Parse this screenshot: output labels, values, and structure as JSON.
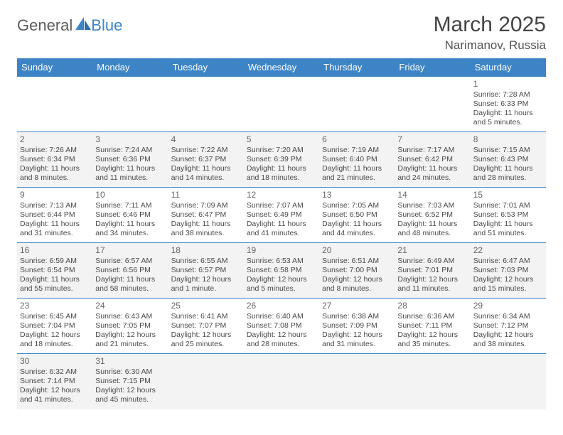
{
  "logo": {
    "text1": "General",
    "text2": "Blue",
    "accent": "#3d84c6",
    "text_color": "#5a5a5a"
  },
  "title": "March 2025",
  "location": "Narimanov, Russia",
  "columns": [
    "Sunday",
    "Monday",
    "Tuesday",
    "Wednesday",
    "Thursday",
    "Friday",
    "Saturday"
  ],
  "colors": {
    "header_bg": "#3d84c6",
    "header_fg": "#ffffff",
    "row_alt_bg": "#f3f3f3",
    "border": "#3d84c6",
    "text": "#4a4a4a"
  },
  "weeks": [
    [
      null,
      null,
      null,
      null,
      null,
      null,
      {
        "n": "1",
        "sr": "7:28 AM",
        "ss": "6:33 PM",
        "dl": "11 hours and 5 minutes."
      }
    ],
    [
      {
        "n": "2",
        "sr": "7:26 AM",
        "ss": "6:34 PM",
        "dl": "11 hours and 8 minutes."
      },
      {
        "n": "3",
        "sr": "7:24 AM",
        "ss": "6:36 PM",
        "dl": "11 hours and 11 minutes."
      },
      {
        "n": "4",
        "sr": "7:22 AM",
        "ss": "6:37 PM",
        "dl": "11 hours and 14 minutes."
      },
      {
        "n": "5",
        "sr": "7:20 AM",
        "ss": "6:39 PM",
        "dl": "11 hours and 18 minutes."
      },
      {
        "n": "6",
        "sr": "7:19 AM",
        "ss": "6:40 PM",
        "dl": "11 hours and 21 minutes."
      },
      {
        "n": "7",
        "sr": "7:17 AM",
        "ss": "6:42 PM",
        "dl": "11 hours and 24 minutes."
      },
      {
        "n": "8",
        "sr": "7:15 AM",
        "ss": "6:43 PM",
        "dl": "11 hours and 28 minutes."
      }
    ],
    [
      {
        "n": "9",
        "sr": "7:13 AM",
        "ss": "6:44 PM",
        "dl": "11 hours and 31 minutes."
      },
      {
        "n": "10",
        "sr": "7:11 AM",
        "ss": "6:46 PM",
        "dl": "11 hours and 34 minutes."
      },
      {
        "n": "11",
        "sr": "7:09 AM",
        "ss": "6:47 PM",
        "dl": "11 hours and 38 minutes."
      },
      {
        "n": "12",
        "sr": "7:07 AM",
        "ss": "6:49 PM",
        "dl": "11 hours and 41 minutes."
      },
      {
        "n": "13",
        "sr": "7:05 AM",
        "ss": "6:50 PM",
        "dl": "11 hours and 44 minutes."
      },
      {
        "n": "14",
        "sr": "7:03 AM",
        "ss": "6:52 PM",
        "dl": "11 hours and 48 minutes."
      },
      {
        "n": "15",
        "sr": "7:01 AM",
        "ss": "6:53 PM",
        "dl": "11 hours and 51 minutes."
      }
    ],
    [
      {
        "n": "16",
        "sr": "6:59 AM",
        "ss": "6:54 PM",
        "dl": "11 hours and 55 minutes."
      },
      {
        "n": "17",
        "sr": "6:57 AM",
        "ss": "6:56 PM",
        "dl": "11 hours and 58 minutes."
      },
      {
        "n": "18",
        "sr": "6:55 AM",
        "ss": "6:57 PM",
        "dl": "12 hours and 1 minute."
      },
      {
        "n": "19",
        "sr": "6:53 AM",
        "ss": "6:58 PM",
        "dl": "12 hours and 5 minutes."
      },
      {
        "n": "20",
        "sr": "6:51 AM",
        "ss": "7:00 PM",
        "dl": "12 hours and 8 minutes."
      },
      {
        "n": "21",
        "sr": "6:49 AM",
        "ss": "7:01 PM",
        "dl": "12 hours and 11 minutes."
      },
      {
        "n": "22",
        "sr": "6:47 AM",
        "ss": "7:03 PM",
        "dl": "12 hours and 15 minutes."
      }
    ],
    [
      {
        "n": "23",
        "sr": "6:45 AM",
        "ss": "7:04 PM",
        "dl": "12 hours and 18 minutes."
      },
      {
        "n": "24",
        "sr": "6:43 AM",
        "ss": "7:05 PM",
        "dl": "12 hours and 21 minutes."
      },
      {
        "n": "25",
        "sr": "6:41 AM",
        "ss": "7:07 PM",
        "dl": "12 hours and 25 minutes."
      },
      {
        "n": "26",
        "sr": "6:40 AM",
        "ss": "7:08 PM",
        "dl": "12 hours and 28 minutes."
      },
      {
        "n": "27",
        "sr": "6:38 AM",
        "ss": "7:09 PM",
        "dl": "12 hours and 31 minutes."
      },
      {
        "n": "28",
        "sr": "6:36 AM",
        "ss": "7:11 PM",
        "dl": "12 hours and 35 minutes."
      },
      {
        "n": "29",
        "sr": "6:34 AM",
        "ss": "7:12 PM",
        "dl": "12 hours and 38 minutes."
      }
    ],
    [
      {
        "n": "30",
        "sr": "6:32 AM",
        "ss": "7:14 PM",
        "dl": "12 hours and 41 minutes."
      },
      {
        "n": "31",
        "sr": "6:30 AM",
        "ss": "7:15 PM",
        "dl": "12 hours and 45 minutes."
      },
      null,
      null,
      null,
      null,
      null
    ]
  ],
  "labels": {
    "sunrise": "Sunrise:",
    "sunset": "Sunset:",
    "daylight": "Daylight:"
  }
}
